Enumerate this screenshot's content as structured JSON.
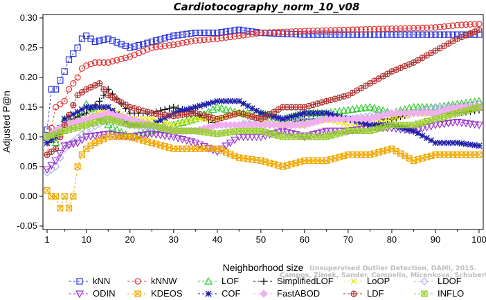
{
  "chart_data": {
    "type": "line",
    "title": "Cardiotocography_norm_10_v08",
    "xlabel": "Neighborhood size",
    "ylabel": "Adjusted P@n",
    "xlim": [
      1,
      100
    ],
    "ylim": [
      -0.05,
      0.3
    ],
    "x_ticks": [
      1,
      10,
      20,
      30,
      40,
      50,
      60,
      70,
      80,
      90,
      100
    ],
    "y_ticks": [
      "-0.05",
      "0.00",
      "0.05",
      "0.10",
      "0.15",
      "0.20",
      "0.25",
      "0.30"
    ],
    "credit": [
      "Unsupervised Outlier Detection. DAMI, 2015.",
      "Campos, Zimek, Sander, Campello, Micenkova, Schubert, Assent, Houle"
    ],
    "series": [
      {
        "name": "kNN",
        "color": "#2a34d8",
        "marker": "square",
        "x": [
          1,
          2,
          3,
          4,
          5,
          6,
          7,
          8,
          9,
          10,
          12,
          15,
          20,
          25,
          30,
          35,
          40,
          45,
          50,
          60,
          70,
          80,
          90,
          100
        ],
        "values": [
          0.112,
          0.18,
          0.18,
          0.195,
          0.21,
          0.23,
          0.24,
          0.25,
          0.265,
          0.27,
          0.26,
          0.265,
          0.25,
          0.26,
          0.27,
          0.275,
          0.275,
          0.28,
          0.275,
          0.272,
          0.272,
          0.272,
          0.272,
          0.272
        ]
      },
      {
        "name": "kNNW",
        "color": "#e03030",
        "marker": "circle",
        "x": [
          1,
          2,
          3,
          4,
          5,
          6,
          7,
          8,
          9,
          10,
          12,
          15,
          20,
          25,
          30,
          35,
          40,
          45,
          50,
          60,
          70,
          80,
          90,
          95,
          100
        ],
        "values": [
          0.07,
          0.115,
          0.15,
          0.155,
          0.16,
          0.18,
          0.19,
          0.2,
          0.215,
          0.22,
          0.225,
          0.225,
          0.235,
          0.25,
          0.255,
          0.262,
          0.265,
          0.27,
          0.275,
          0.278,
          0.28,
          0.282,
          0.284,
          0.288,
          0.29
        ]
      },
      {
        "name": "LOF",
        "color": "#33cc33",
        "marker": "triangle",
        "x": [
          1,
          3,
          5,
          7,
          10,
          15,
          20,
          25,
          30,
          35,
          40,
          45,
          50,
          55,
          60,
          65,
          70,
          75,
          80,
          85,
          90,
          95,
          100
        ],
        "values": [
          0.1,
          0.09,
          0.13,
          0.12,
          0.155,
          0.12,
          0.1,
          0.11,
          0.12,
          0.13,
          0.15,
          0.14,
          0.14,
          0.13,
          0.14,
          0.14,
          0.145,
          0.15,
          0.14,
          0.15,
          0.15,
          0.155,
          0.16
        ]
      },
      {
        "name": "SimplifiedLOF",
        "color": "#000000",
        "marker": "plus",
        "x": [
          1,
          3,
          5,
          7,
          10,
          13,
          15,
          20,
          25,
          30,
          35,
          40,
          45,
          50,
          55,
          60,
          65,
          70,
          75,
          80,
          85,
          90,
          95,
          100
        ],
        "values": [
          0.09,
          0.1,
          0.12,
          0.13,
          0.14,
          0.16,
          0.18,
          0.14,
          0.14,
          0.15,
          0.14,
          0.12,
          0.12,
          0.12,
          0.12,
          0.13,
          0.13,
          0.13,
          0.13,
          0.13,
          0.14,
          0.14,
          0.14,
          0.145
        ]
      },
      {
        "name": "LoOP",
        "color": "#e6e600",
        "marker": "x",
        "x": [
          1,
          5,
          10,
          15,
          20,
          25,
          30,
          35,
          40,
          45,
          50,
          55,
          60,
          65,
          70,
          75,
          80,
          85,
          90,
          95,
          100
        ],
        "values": [
          0.1,
          0.12,
          0.13,
          0.15,
          0.13,
          0.13,
          0.12,
          0.13,
          0.13,
          0.14,
          0.13,
          0.12,
          0.12,
          0.13,
          0.12,
          0.12,
          0.13,
          0.14,
          0.14,
          0.145,
          0.15
        ]
      },
      {
        "name": "LDOF",
        "color": "#b0b0e8",
        "marker": "diamond",
        "x": [
          1,
          3,
          5,
          10,
          15,
          20,
          25,
          30,
          35,
          40,
          45,
          50,
          55,
          60,
          65,
          70,
          75,
          80,
          85,
          90,
          95,
          100
        ],
        "values": [
          0.04,
          0.05,
          0.08,
          0.11,
          0.13,
          0.12,
          0.115,
          0.11,
          0.11,
          0.12,
          0.12,
          0.13,
          0.13,
          0.125,
          0.13,
          0.13,
          0.135,
          0.14,
          0.14,
          0.15,
          0.15,
          0.155
        ]
      },
      {
        "name": "ODIN",
        "color": "#9933cc",
        "marker": "triangle-down",
        "x": [
          1,
          3,
          5,
          8,
          10,
          15,
          20,
          25,
          30,
          35,
          40,
          45,
          50,
          55,
          60,
          65,
          70,
          75,
          80,
          85,
          90,
          95,
          100
        ],
        "values": [
          0.045,
          0.06,
          0.085,
          0.09,
          0.1,
          0.105,
          0.1,
          0.105,
          0.1,
          0.09,
          0.075,
          0.1,
          0.1,
          0.11,
          0.1,
          0.11,
          0.11,
          0.115,
          0.115,
          0.11,
          0.12,
          0.125,
          0.12
        ]
      },
      {
        "name": "KDEOS",
        "color": "#f0a800",
        "marker": "boxx",
        "x": [
          1,
          2,
          3,
          4,
          5,
          6,
          7,
          8,
          9,
          10,
          12,
          15,
          20,
          25,
          30,
          35,
          40,
          45,
          50,
          55,
          60,
          65,
          70,
          75,
          80,
          85,
          90,
          95,
          100
        ],
        "values": [
          0.01,
          0.0,
          0.0,
          -0.02,
          0.0,
          -0.02,
          0.0,
          0.05,
          0.07,
          0.08,
          0.09,
          0.1,
          0.1,
          0.09,
          0.08,
          0.08,
          0.08,
          0.065,
          0.06,
          0.05,
          0.06,
          0.06,
          0.07,
          0.07,
          0.08,
          0.06,
          0.07,
          0.07,
          0.07
        ]
      },
      {
        "name": "COF",
        "color": "#1f1fa8",
        "marker": "asterisk",
        "x": [
          1,
          3,
          5,
          10,
          15,
          20,
          25,
          30,
          35,
          40,
          45,
          50,
          55,
          60,
          65,
          70,
          75,
          80,
          85,
          90,
          95,
          100
        ],
        "values": [
          0.09,
          0.1,
          0.13,
          0.15,
          0.15,
          0.12,
          0.12,
          0.14,
          0.15,
          0.16,
          0.16,
          0.14,
          0.13,
          0.14,
          0.14,
          0.13,
          0.12,
          0.12,
          0.11,
          0.09,
          0.09,
          0.085
        ]
      },
      {
        "name": "FastABOD",
        "color": "#f0b0f0",
        "marker": "diamond-filled",
        "x": [
          1,
          5,
          10,
          15,
          20,
          25,
          30,
          35,
          40,
          45,
          50,
          55,
          60,
          65,
          70,
          75,
          80,
          85,
          90,
          95,
          100
        ],
        "values": [
          0.1,
          0.12,
          0.13,
          0.14,
          0.13,
          0.12,
          0.11,
          0.11,
          0.12,
          0.12,
          0.12,
          0.12,
          0.12,
          0.13,
          0.13,
          0.13,
          0.14,
          0.14,
          0.14,
          0.15,
          0.15
        ]
      },
      {
        "name": "LDF",
        "color": "#b03030",
        "marker": "circle-plus",
        "x": [
          1,
          3,
          5,
          8,
          10,
          13,
          15,
          20,
          25,
          30,
          35,
          40,
          45,
          50,
          55,
          60,
          65,
          70,
          75,
          80,
          85,
          90,
          95,
          100
        ],
        "values": [
          0.07,
          0.08,
          0.12,
          0.17,
          0.18,
          0.19,
          0.17,
          0.15,
          0.14,
          0.135,
          0.14,
          0.13,
          0.14,
          0.13,
          0.15,
          0.15,
          0.16,
          0.17,
          0.19,
          0.21,
          0.225,
          0.245,
          0.265,
          0.28
        ]
      },
      {
        "name": "INFLO",
        "color": "#99cc33",
        "marker": "xbox",
        "x": [
          1,
          5,
          10,
          15,
          20,
          25,
          30,
          35,
          40,
          45,
          50,
          55,
          60,
          65,
          70,
          75,
          80,
          85,
          90,
          95,
          100
        ],
        "values": [
          0.1,
          0.11,
          0.12,
          0.13,
          0.12,
          0.12,
          0.11,
          0.11,
          0.105,
          0.11,
          0.11,
          0.1,
          0.1,
          0.1,
          0.11,
          0.11,
          0.12,
          0.12,
          0.13,
          0.14,
          0.15
        ]
      }
    ],
    "legend_position": "bottom"
  }
}
